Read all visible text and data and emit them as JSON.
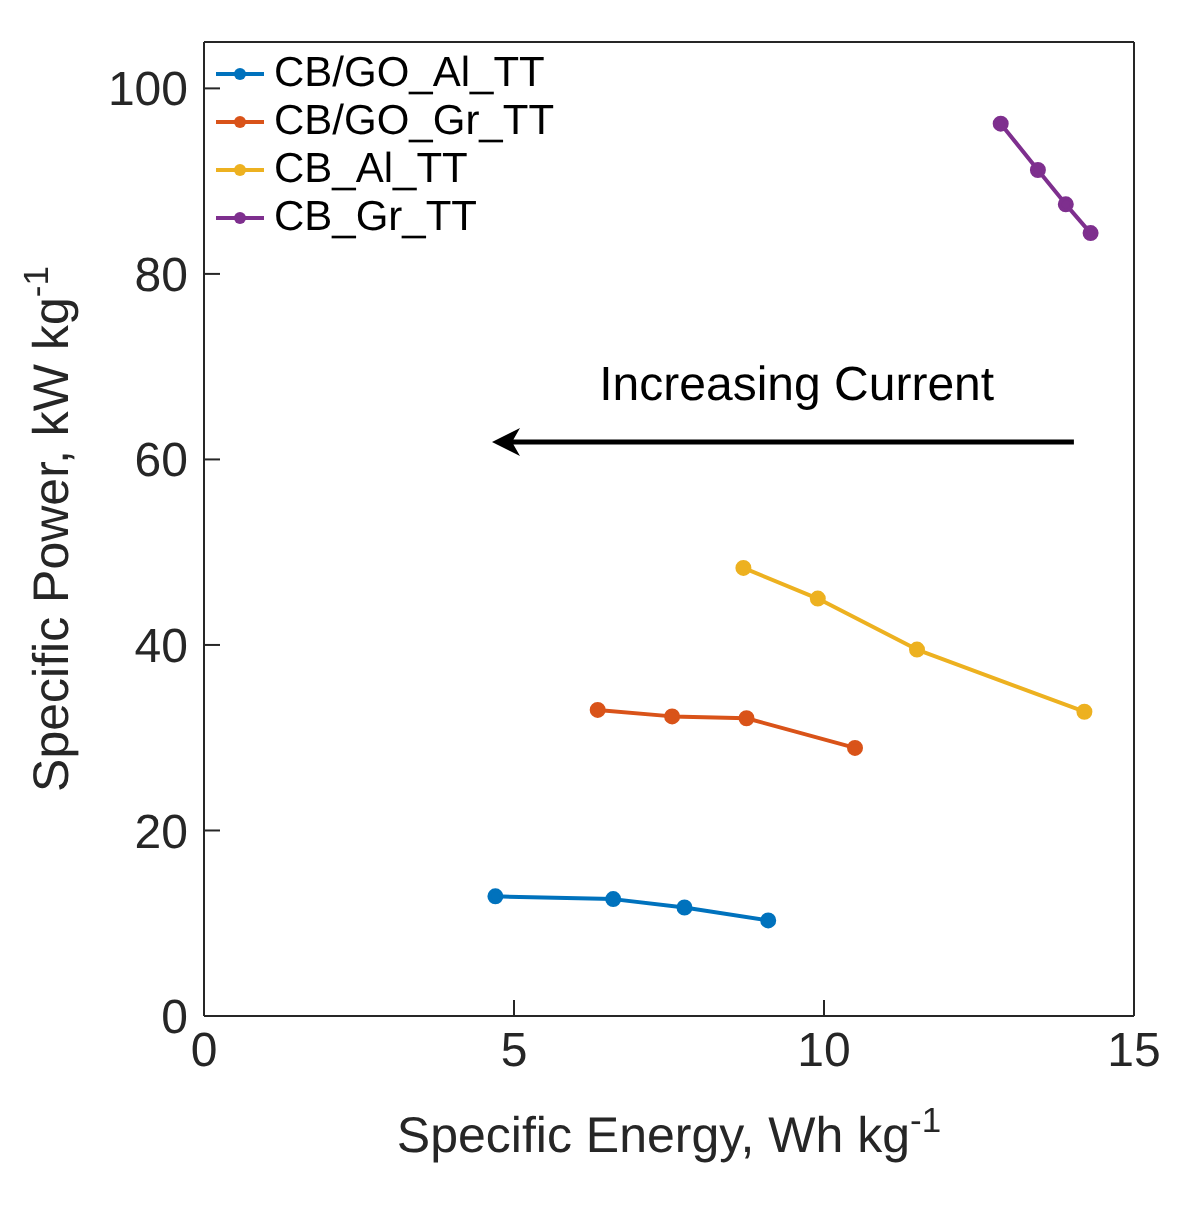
{
  "chart_data": {
    "type": "line",
    "xlabel": "Specific Energy, Wh kg$^{-1}$",
    "ylabel": "Specific Power, kW kg$^{-1}$",
    "xlim": [
      0,
      15
    ],
    "xticks": [
      0,
      5,
      10,
      15
    ],
    "ylim": [
      0,
      105
    ],
    "yticks": [
      0,
      20,
      40,
      60,
      80,
      100
    ],
    "grid": false,
    "legend": "top left",
    "marker": "circle",
    "line_style": "solid",
    "annotations": [
      "Increasing Current"
    ],
    "series": [
      {
        "name": "CB/GO_Al_TT",
        "color": "#0072bd",
        "x": [
          4.7,
          6.6,
          7.75,
          9.1
        ],
        "values": [
          12.9,
          12.6,
          11.7,
          10.3
        ]
      },
      {
        "name": "CB/GO_Gr_TT",
        "color": "#d95319",
        "x": [
          6.35,
          7.55,
          8.75,
          10.5
        ],
        "values": [
          33,
          32.3,
          32.1,
          28.9
        ]
      },
      {
        "name": "CB_Al_TT",
        "color": "#edb120",
        "x": [
          8.7,
          9.9,
          11.5,
          14.2
        ],
        "values": [
          48.3,
          45,
          39.5,
          32.8
        ]
      },
      {
        "name": "CB_Gr_TT",
        "color": "#7e2f8e",
        "x": [
          12.85,
          13.45,
          13.9,
          14.3
        ],
        "values": [
          96.2,
          91.2,
          87.5,
          84.4
        ]
      }
    ]
  }
}
